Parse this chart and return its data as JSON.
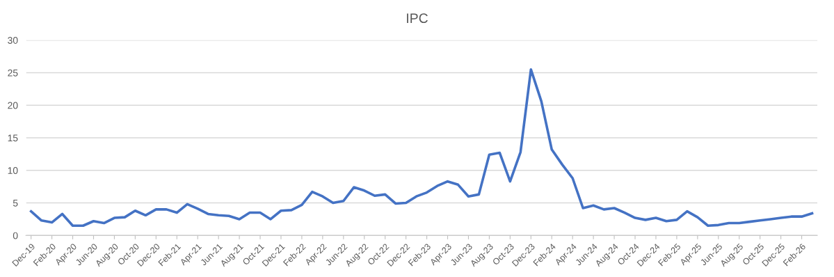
{
  "chart_data": {
    "type": "line",
    "title": "IPC",
    "categories": [
      "Dec-19",
      null,
      "Feb-20",
      null,
      "Apr-20",
      null,
      "Jun-20",
      null,
      "Aug-20",
      null,
      "Oct-20",
      null,
      "Dec-20",
      null,
      "Feb-21",
      null,
      "Apr-21",
      null,
      "Jun-21",
      null,
      "Aug-21",
      null,
      "Oct-21",
      null,
      "Dec-21",
      null,
      "Feb-22",
      null,
      "Apr-22",
      null,
      "Jun-22",
      null,
      "Aug-22",
      null,
      "Oct-22",
      null,
      "Dec-22",
      null,
      "Feb-23",
      null,
      "Apr-23",
      null,
      "Jun-23",
      null,
      "Aug-23",
      null,
      "Oct-23",
      null,
      "Dec-23",
      null,
      "Feb-24",
      null,
      "Apr-24",
      null,
      "Jun-24",
      null,
      "Aug-24",
      null,
      "Oct-24",
      null,
      "Dec-24",
      null,
      "Feb-25",
      null,
      "Apr-25",
      null,
      "Jun-25",
      null,
      "Aug-25",
      null,
      "Oct-25",
      null,
      "Dec-25",
      null,
      "Feb-26",
      null
    ],
    "series": [
      {
        "color": "#4472c4",
        "values": [
          3.7,
          2.3,
          2.0,
          3.3,
          1.5,
          1.5,
          2.2,
          1.9,
          2.7,
          2.8,
          3.8,
          3.1,
          4.0,
          4.0,
          3.5,
          4.8,
          4.1,
          3.3,
          3.1,
          3.0,
          2.5,
          3.5,
          3.5,
          2.5,
          3.8,
          3.9,
          4.7,
          6.7,
          6.0,
          5.0,
          5.3,
          7.4,
          6.9,
          6.1,
          6.3,
          4.9,
          5.0,
          6.0,
          6.6,
          7.6,
          8.3,
          7.8,
          6.0,
          6.3,
          12.4,
          12.7,
          8.3,
          12.8,
          25.5,
          20.6,
          13.2,
          10.9,
          8.8,
          4.2,
          4.6,
          4.0,
          4.2,
          3.5,
          2.7,
          2.4,
          2.7,
          2.2,
          2.4,
          3.7,
          2.8,
          1.5,
          1.6,
          1.9,
          1.9,
          2.1,
          2.3,
          2.5,
          2.7,
          2.9,
          2.9,
          3.4
        ]
      }
    ],
    "ylim": [
      0,
      30
    ],
    "yticks": [
      0,
      5,
      10,
      15,
      20,
      25,
      30
    ],
    "grid": "y",
    "marker": "none",
    "line_style": "solid"
  }
}
